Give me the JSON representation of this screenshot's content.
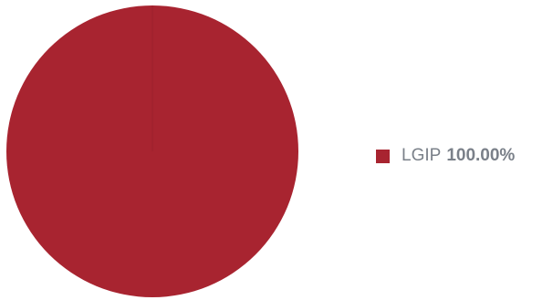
{
  "chart_data": {
    "type": "pie",
    "slices": [
      {
        "label": "LGIP",
        "value": 100.0,
        "display": "100.00%",
        "color": "#a82430"
      }
    ],
    "legend_position": "right",
    "legend_text_color": "#7a8089"
  }
}
